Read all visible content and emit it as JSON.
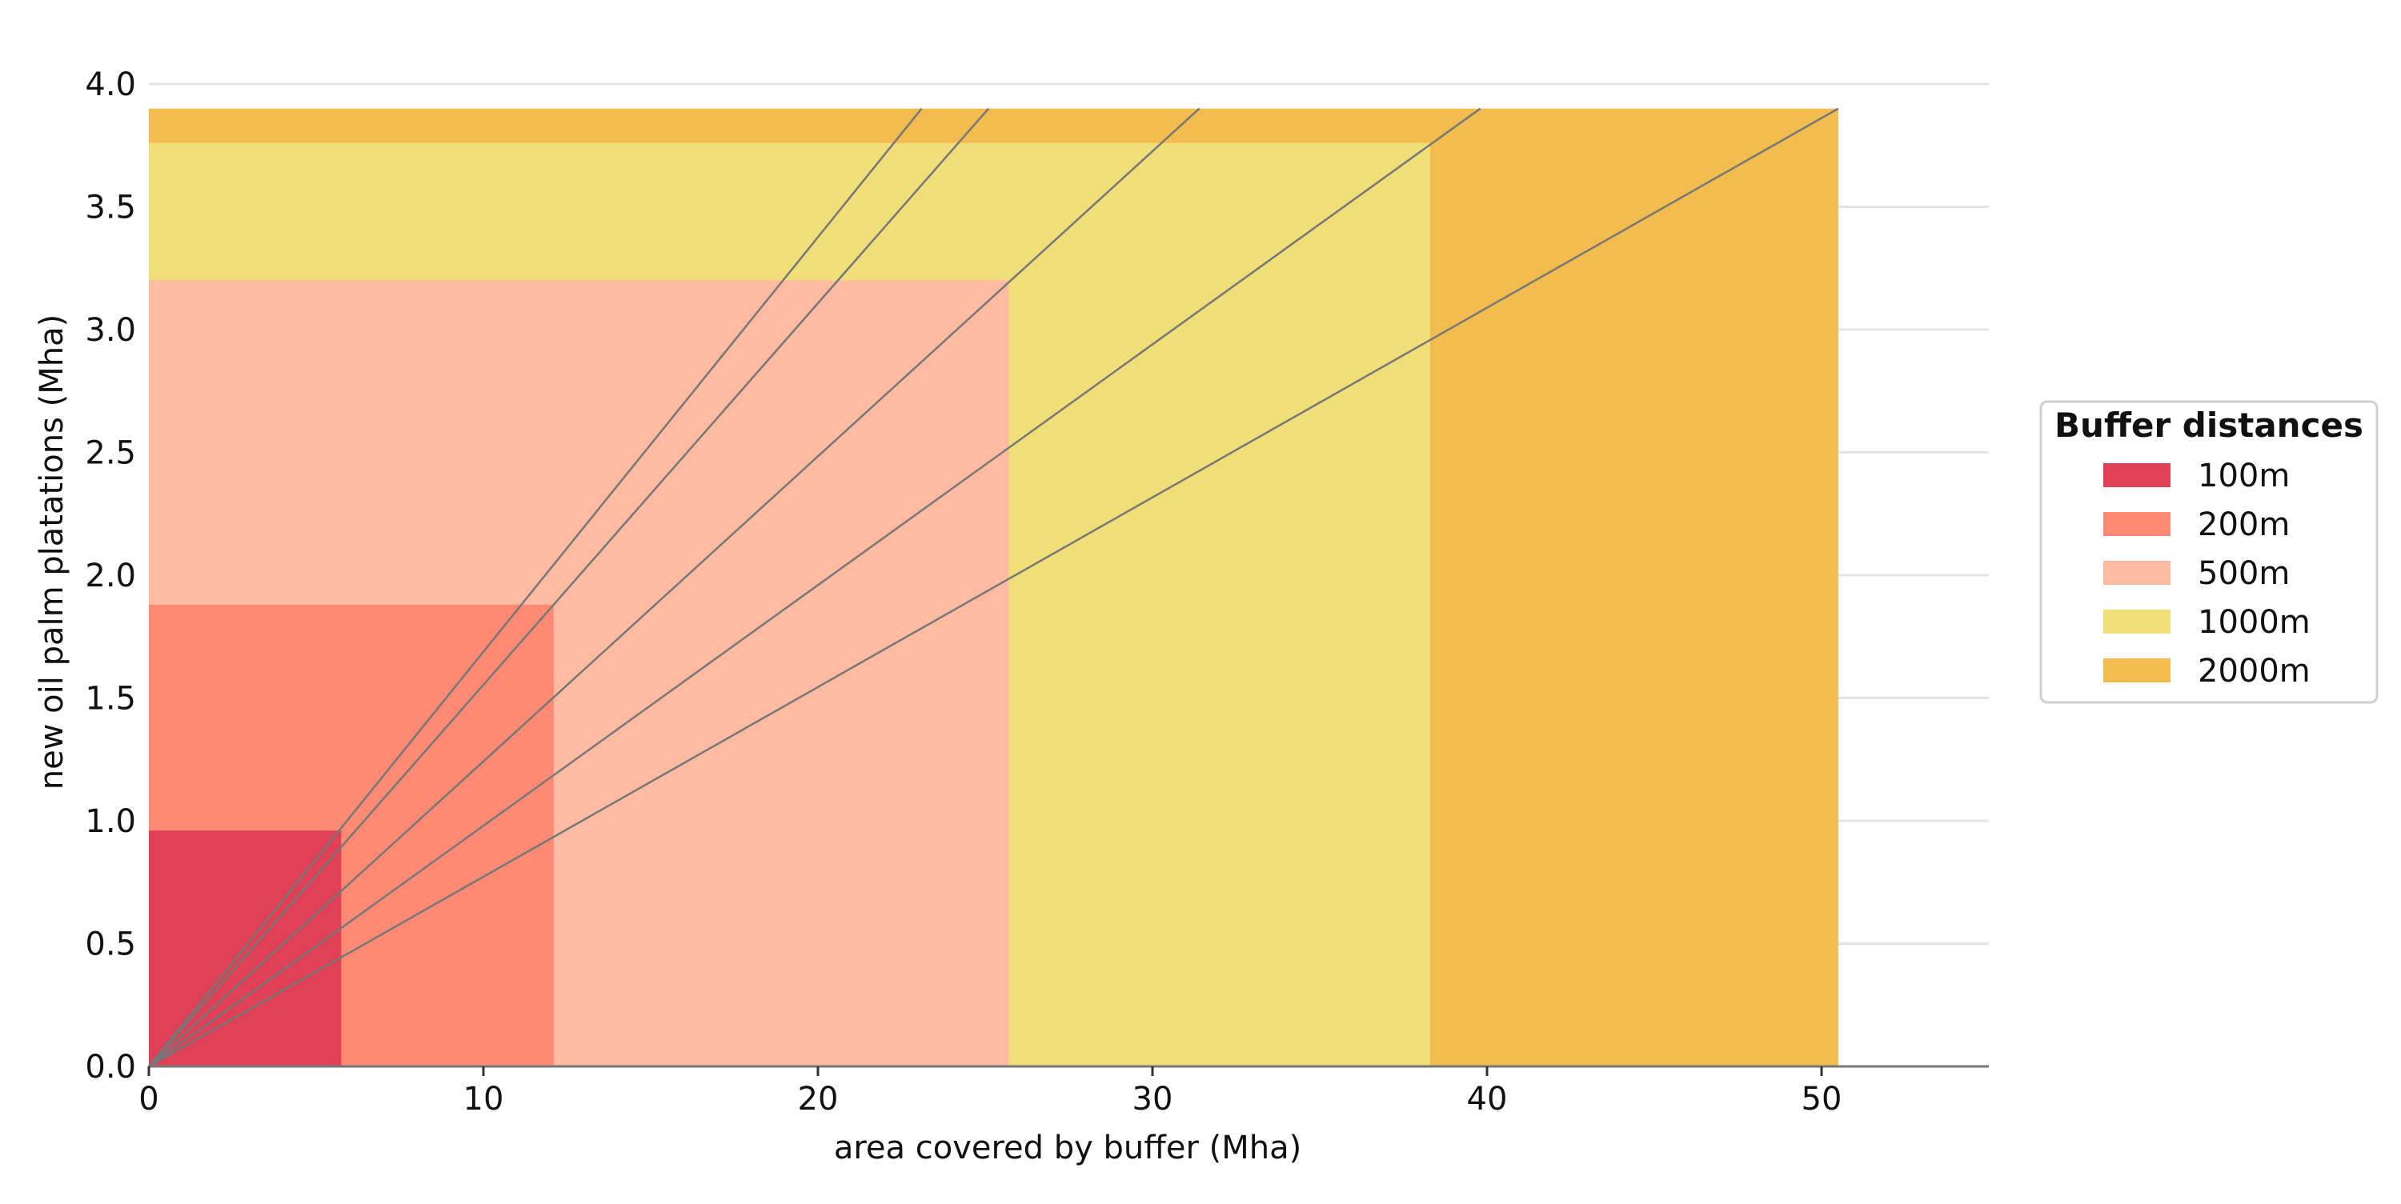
{
  "chart_data": {
    "type": "bar",
    "title": "",
    "xlabel": "area covered by buffer (Mha)",
    "ylabel": "new oil palm platations (Mha)",
    "xlim": [
      0,
      55
    ],
    "ylim": [
      0,
      4.0
    ],
    "xticks": [
      "0",
      "10",
      "20",
      "30",
      "40",
      "50"
    ],
    "yticks": [
      "0.0",
      "0.5",
      "1.0",
      "1.5",
      "2.0",
      "2.5",
      "3.0",
      "3.5",
      "4.0"
    ],
    "grid": "horizontal",
    "legend": {
      "title": "Buffer distances",
      "placement": "right"
    },
    "series": [
      {
        "name": "2000m",
        "area_mha": 50.5,
        "new_plantations_mha": 3.9,
        "color": "#F3BC4F"
      },
      {
        "name": "1000m",
        "area_mha": 38.3,
        "new_plantations_mha": 3.76,
        "color": "#F0DF78"
      },
      {
        "name": "500m",
        "area_mha": 25.7,
        "new_plantations_mha": 3.2,
        "color": "#FFBBA1"
      },
      {
        "name": "200m",
        "area_mha": 12.1,
        "new_plantations_mha": 1.88,
        "color": "#FF8A73"
      },
      {
        "name": "100m",
        "area_mha": 5.75,
        "new_plantations_mha": 0.96,
        "color": "#E04055"
      }
    ],
    "reference_lines": {
      "color": "#777777",
      "origin": [
        0,
        0
      ],
      "endpoints": [
        {
          "x": 23.1,
          "y": 3.9
        },
        {
          "x": 25.1,
          "y": 3.9
        },
        {
          "x": 31.4,
          "y": 3.9
        },
        {
          "x": 39.8,
          "y": 3.9
        },
        {
          "x": 50.5,
          "y": 3.9
        }
      ]
    }
  }
}
